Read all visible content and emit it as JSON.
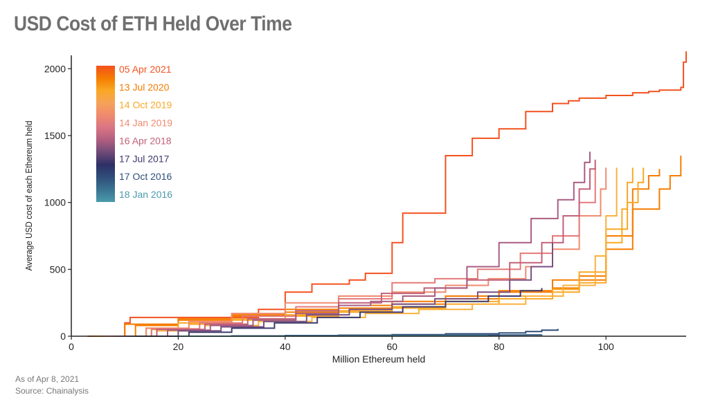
{
  "title": "USD Cost of ETH Held Over Time",
  "footnotes": {
    "as_of": "As of Apr 8, 2021",
    "source": "Source: Chainalysis"
  },
  "colors": {
    "axis": "#222222",
    "title": "#6f6f6f",
    "note": "#777777"
  },
  "chart_data": {
    "type": "line",
    "title": "",
    "xlabel": "Million Ethereum held",
    "ylabel": "Average USD cost of each Ethereum held",
    "xlim": [
      0,
      115
    ],
    "ylim": [
      0,
      2100
    ],
    "xticks": [
      0,
      20,
      40,
      60,
      80,
      100
    ],
    "yticks": [
      0,
      500,
      1000,
      1500,
      2000
    ],
    "grid": false,
    "legend": {
      "placement": "top-left",
      "type": "color-gradient",
      "labels": [
        {
          "label": "05 Apr 2021",
          "color": "#f4511e"
        },
        {
          "label": "13 Jul 2020",
          "color": "#f57c00"
        },
        {
          "label": "14 Oct 2019",
          "color": "#f9a825"
        },
        {
          "label": "14 Jan 2019",
          "color": "#f08a6e"
        },
        {
          "label": "16 Apr 2018",
          "color": "#c2607a"
        },
        {
          "label": "17 Jul 2017",
          "color": "#3d3a6e"
        },
        {
          "label": "17 Oct 2016",
          "color": "#2f4e7a"
        },
        {
          "label": "18 Jan 2016",
          "color": "#4a9bab"
        }
      ],
      "gradient": [
        "#f4511e",
        "#f57c00",
        "#f9a825",
        "#f6a25a",
        "#f08a6e",
        "#d97584",
        "#b05e7f",
        "#6e4a78",
        "#2e2f66",
        "#2f4e7a",
        "#3a7392",
        "#4a9bab"
      ]
    },
    "series": [
      {
        "color": "#f4511e",
        "x": [
          3,
          10,
          11,
          20,
          30,
          35,
          40,
          45,
          52,
          55,
          60,
          62,
          70,
          75,
          78,
          80,
          85,
          90,
          93,
          95,
          100,
          105,
          108,
          110,
          112,
          113,
          114,
          114.5,
          115
        ],
        "y": [
          0,
          100,
          140,
          140,
          140,
          200,
          330,
          390,
          420,
          470,
          700,
          920,
          1350,
          1480,
          1480,
          1550,
          1680,
          1740,
          1760,
          1780,
          1800,
          1820,
          1830,
          1840,
          1840,
          1840,
          1860,
          2050,
          2130
        ]
      },
      {
        "color": "#f57c00",
        "x": [
          4,
          10,
          20,
          30,
          40,
          50,
          60,
          70,
          80,
          90,
          100,
          105,
          110,
          112,
          114
        ],
        "y": [
          0,
          90,
          130,
          160,
          200,
          230,
          260,
          300,
          340,
          420,
          650,
          950,
          1100,
          1200,
          1350
        ]
      },
      {
        "color": "#f57c00",
        "x": [
          5,
          12,
          20,
          30,
          40,
          50,
          60,
          70,
          80,
          90,
          95,
          100,
          105,
          108,
          110
        ],
        "y": [
          0,
          80,
          120,
          150,
          180,
          210,
          240,
          280,
          330,
          360,
          450,
          750,
          1100,
          1200,
          1250
        ]
      },
      {
        "color": "#f9a825",
        "x": [
          6,
          14,
          20,
          30,
          40,
          50,
          60,
          70,
          80,
          90,
          95,
          100,
          104,
          106,
          107
        ],
        "y": [
          0,
          60,
          100,
          130,
          160,
          190,
          220,
          260,
          300,
          350,
          480,
          800,
          1000,
          1150,
          1260
        ]
      },
      {
        "color": "#f9a825",
        "x": [
          7,
          15,
          22,
          30,
          40,
          50,
          60,
          70,
          80,
          90,
          95,
          100,
          103,
          104,
          105
        ],
        "y": [
          0,
          50,
          90,
          120,
          150,
          180,
          210,
          240,
          280,
          330,
          400,
          700,
          950,
          1150,
          1260
        ]
      },
      {
        "color": "#fbb03b",
        "x": [
          8,
          16,
          25,
          35,
          45,
          55,
          65,
          75,
          85,
          92,
          98,
          100,
          102
        ],
        "y": [
          0,
          40,
          80,
          110,
          140,
          170,
          200,
          240,
          300,
          380,
          600,
          900,
          1260
        ]
      },
      {
        "color": "#f08a6e",
        "x": [
          6,
          14,
          22,
          30,
          40,
          50,
          60,
          70,
          78,
          85,
          90,
          95,
          99,
          100
        ],
        "y": [
          0,
          60,
          110,
          170,
          250,
          300,
          330,
          380,
          430,
          520,
          650,
          900,
          1100,
          1260
        ]
      },
      {
        "color": "#e57878",
        "x": [
          7,
          15,
          24,
          32,
          42,
          50,
          60,
          68,
          76,
          84,
          90,
          95,
          98
        ],
        "y": [
          0,
          55,
          100,
          150,
          220,
          280,
          400,
          430,
          500,
          620,
          750,
          1000,
          1260
        ]
      },
      {
        "color": "#c2607a",
        "x": [
          8,
          16,
          25,
          33,
          42,
          50,
          58,
          66,
          74,
          82,
          88,
          92,
          95,
          97,
          98
        ],
        "y": [
          0,
          50,
          90,
          130,
          190,
          250,
          320,
          360,
          420,
          550,
          700,
          900,
          1100,
          1250,
          1320
        ]
      },
      {
        "color": "#a85c80",
        "x": [
          9,
          18,
          26,
          34,
          42,
          50,
          56,
          62,
          68,
          74,
          80,
          86,
          91,
          94,
          96,
          97
        ],
        "y": [
          0,
          45,
          80,
          120,
          170,
          230,
          260,
          300,
          360,
          520,
          700,
          880,
          1020,
          1150,
          1300,
          1380
        ]
      },
      {
        "color": "#7a4f80",
        "x": [
          10,
          20,
          28,
          36,
          44,
          52,
          60,
          68,
          76,
          82,
          86,
          90
        ],
        "y": [
          0,
          40,
          70,
          110,
          160,
          200,
          240,
          280,
          330,
          420,
          520,
          700
        ]
      },
      {
        "color": "#3d3a6e",
        "x": [
          12,
          22,
          30,
          38,
          46,
          54,
          62,
          70,
          78,
          84,
          88
        ],
        "y": [
          0,
          30,
          60,
          100,
          140,
          180,
          220,
          260,
          300,
          340,
          360
        ]
      },
      {
        "color": "#2f4e7a",
        "x": [
          20,
          30,
          40,
          50,
          60,
          70,
          80,
          85,
          88,
          91
        ],
        "y": [
          0,
          2,
          5,
          8,
          12,
          18,
          25,
          35,
          45,
          55
        ]
      },
      {
        "color": "#35597e",
        "x": [
          20,
          30,
          40,
          50,
          60,
          70,
          80,
          85,
          88
        ],
        "y": [
          0,
          1,
          2,
          3,
          5,
          7,
          9,
          10,
          12
        ]
      },
      {
        "color": "#4a9bab",
        "x": [
          20,
          30,
          40,
          50,
          60,
          70,
          78
        ],
        "y": [
          0,
          0,
          1,
          1,
          2,
          2,
          3
        ]
      }
    ]
  }
}
